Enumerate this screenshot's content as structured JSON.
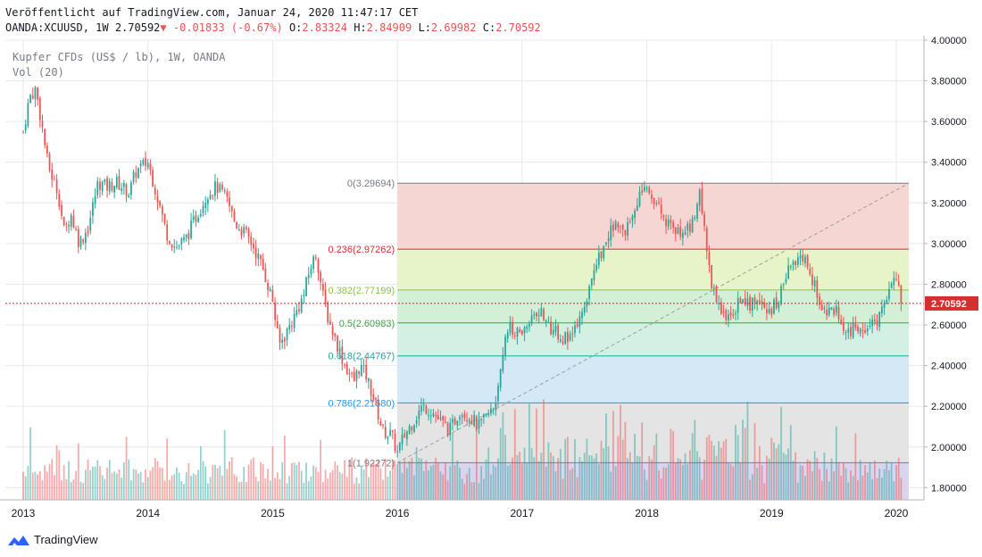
{
  "header": {
    "published": "Veröffentlicht auf TradingView.com, Januar 24, 2020 11:47:17 CET",
    "symbol_line": "OANDA:XCUUSD, 1W",
    "last": "2.70592",
    "change": "-0.01833 (-0.67%)",
    "o_label": "O:",
    "o": "2.83324",
    "h_label": "H:",
    "h": "2.84909",
    "l_label": "L:",
    "l": "2.69982",
    "c_label": "C:",
    "c": "2.70592"
  },
  "legend": {
    "instrument": "Kupfer CFDs (US$ / lb), 1W, OANDA",
    "volume": "Vol (20)"
  },
  "brand": {
    "name": "TradingView"
  },
  "colors": {
    "up": "#26a69a",
    "down": "#ef5350",
    "grid": "#e6eaee",
    "price_line": "#c62828",
    "price_label_bg": "#d32f2f"
  },
  "chart_data": {
    "type": "candlestick",
    "interval": "1W",
    "y_range": [
      1.74,
      4.0
    ],
    "y_ticks": [
      "4.00000",
      "3.80000",
      "3.60000",
      "3.40000",
      "3.20000",
      "3.00000",
      "2.80000",
      "2.60000",
      "2.40000",
      "2.20000",
      "2.00000",
      "1.80000"
    ],
    "x_ticks": [
      "2013",
      "2014",
      "2015",
      "2016",
      "2017",
      "2018",
      "2019",
      "2020"
    ],
    "grid": true,
    "current_price": 2.70592,
    "current_price_label": "2.70592",
    "price_path": [
      [
        2013.0,
        3.55
      ],
      [
        2013.05,
        3.72
      ],
      [
        2013.1,
        3.76
      ],
      [
        2013.15,
        3.58
      ],
      [
        2013.2,
        3.38
      ],
      [
        2013.28,
        3.25
      ],
      [
        2013.33,
        3.05
      ],
      [
        2013.38,
        3.15
      ],
      [
        2013.45,
        3.0
      ],
      [
        2013.52,
        3.08
      ],
      [
        2013.6,
        3.3
      ],
      [
        2013.67,
        3.28
      ],
      [
        2013.75,
        3.3
      ],
      [
        2013.85,
        3.25
      ],
      [
        2013.9,
        3.35
      ],
      [
        2013.95,
        3.38
      ],
      [
        2014.0,
        3.4
      ],
      [
        2014.08,
        3.22
      ],
      [
        2014.15,
        3.05
      ],
      [
        2014.22,
        2.98
      ],
      [
        2014.3,
        3.02
      ],
      [
        2014.4,
        3.15
      ],
      [
        2014.48,
        3.25
      ],
      [
        2014.55,
        3.28
      ],
      [
        2014.63,
        3.22
      ],
      [
        2014.7,
        3.1
      ],
      [
        2014.78,
        3.05
      ],
      [
        2014.85,
        2.98
      ],
      [
        2014.92,
        2.88
      ],
      [
        2015.0,
        2.72
      ],
      [
        2015.05,
        2.5
      ],
      [
        2015.1,
        2.55
      ],
      [
        2015.18,
        2.65
      ],
      [
        2015.25,
        2.75
      ],
      [
        2015.3,
        2.88
      ],
      [
        2015.35,
        2.95
      ],
      [
        2015.4,
        2.75
      ],
      [
        2015.45,
        2.62
      ],
      [
        2015.52,
        2.5
      ],
      [
        2015.58,
        2.4
      ],
      [
        2015.65,
        2.32
      ],
      [
        2015.7,
        2.4
      ],
      [
        2015.75,
        2.35
      ],
      [
        2015.82,
        2.22
      ],
      [
        2015.88,
        2.08
      ],
      [
        2015.95,
        2.06
      ],
      [
        2016.0,
        1.97
      ],
      [
        2016.05,
        2.05
      ],
      [
        2016.12,
        2.12
      ],
      [
        2016.2,
        2.2
      ],
      [
        2016.27,
        2.18
      ],
      [
        2016.35,
        2.12
      ],
      [
        2016.42,
        2.08
      ],
      [
        2016.5,
        2.18
      ],
      [
        2016.58,
        2.15
      ],
      [
        2016.65,
        2.1
      ],
      [
        2016.72,
        2.15
      ],
      [
        2016.78,
        2.2
      ],
      [
        2016.83,
        2.4
      ],
      [
        2016.87,
        2.6
      ],
      [
        2016.92,
        2.58
      ],
      [
        2017.0,
        2.55
      ],
      [
        2017.08,
        2.65
      ],
      [
        2017.15,
        2.68
      ],
      [
        2017.22,
        2.58
      ],
      [
        2017.3,
        2.55
      ],
      [
        2017.38,
        2.52
      ],
      [
        2017.45,
        2.6
      ],
      [
        2017.52,
        2.7
      ],
      [
        2017.58,
        2.9
      ],
      [
        2017.63,
        2.95
      ],
      [
        2017.7,
        3.05
      ],
      [
        2017.77,
        3.1
      ],
      [
        2017.83,
        3.05
      ],
      [
        2017.88,
        3.15
      ],
      [
        2017.95,
        3.25
      ],
      [
        2018.0,
        3.25
      ],
      [
        2018.08,
        3.18
      ],
      [
        2018.15,
        3.12
      ],
      [
        2018.22,
        3.05
      ],
      [
        2018.3,
        3.08
      ],
      [
        2018.38,
        3.1
      ],
      [
        2018.43,
        3.25
      ],
      [
        2018.48,
        2.98
      ],
      [
        2018.52,
        2.8
      ],
      [
        2018.58,
        2.7
      ],
      [
        2018.63,
        2.62
      ],
      [
        2018.7,
        2.68
      ],
      [
        2018.77,
        2.75
      ],
      [
        2018.83,
        2.7
      ],
      [
        2018.9,
        2.72
      ],
      [
        2018.97,
        2.65
      ],
      [
        2019.05,
        2.72
      ],
      [
        2019.12,
        2.85
      ],
      [
        2019.2,
        2.92
      ],
      [
        2019.28,
        2.9
      ],
      [
        2019.35,
        2.78
      ],
      [
        2019.42,
        2.65
      ],
      [
        2019.48,
        2.68
      ],
      [
        2019.55,
        2.65
      ],
      [
        2019.6,
        2.55
      ],
      [
        2019.66,
        2.58
      ],
      [
        2019.72,
        2.6
      ],
      [
        2019.78,
        2.58
      ],
      [
        2019.84,
        2.62
      ],
      [
        2019.9,
        2.7
      ],
      [
        2019.95,
        2.78
      ],
      [
        2020.0,
        2.82
      ],
      [
        2020.04,
        2.71
      ]
    ],
    "fib_retracement": {
      "levels": [
        {
          "ratio": "0",
          "price": 3.29694,
          "label": "0(3.29694)",
          "color": "#787b86",
          "fill": "#f6d4d0"
        },
        {
          "ratio": "0.236",
          "price": 2.97262,
          "label": "0.236(2.97262)",
          "color": "#d32f2f",
          "fill": "#e6f2c6"
        },
        {
          "ratio": "0.382",
          "price": 2.77199,
          "label": "0.382(2.77199)",
          "color": "#8bc34a",
          "fill": "#d1efd5"
        },
        {
          "ratio": "0.5",
          "price": 2.60983,
          "label": "0.5(2.60983)",
          "color": "#43a047",
          "fill": "#d1efe4"
        },
        {
          "ratio": "0.618",
          "price": 2.44767,
          "label": "0.618(2.44767)",
          "color": "#26a69a",
          "fill": "#d2e7f4"
        },
        {
          "ratio": "0.786",
          "price": 2.2168,
          "label": "0.786(2.21680)",
          "color": "#2196f3",
          "fill": "#e3e3e3"
        },
        {
          "ratio": "1",
          "price": 1.92272,
          "label": "1(1.92272)",
          "color": "#787b86",
          "fill": "#d8d3ee"
        }
      ],
      "from": [
        2016.0,
        1.92272
      ],
      "to": [
        2020.1,
        3.29694
      ]
    },
    "volume_range": [
      0,
      1
    ]
  }
}
